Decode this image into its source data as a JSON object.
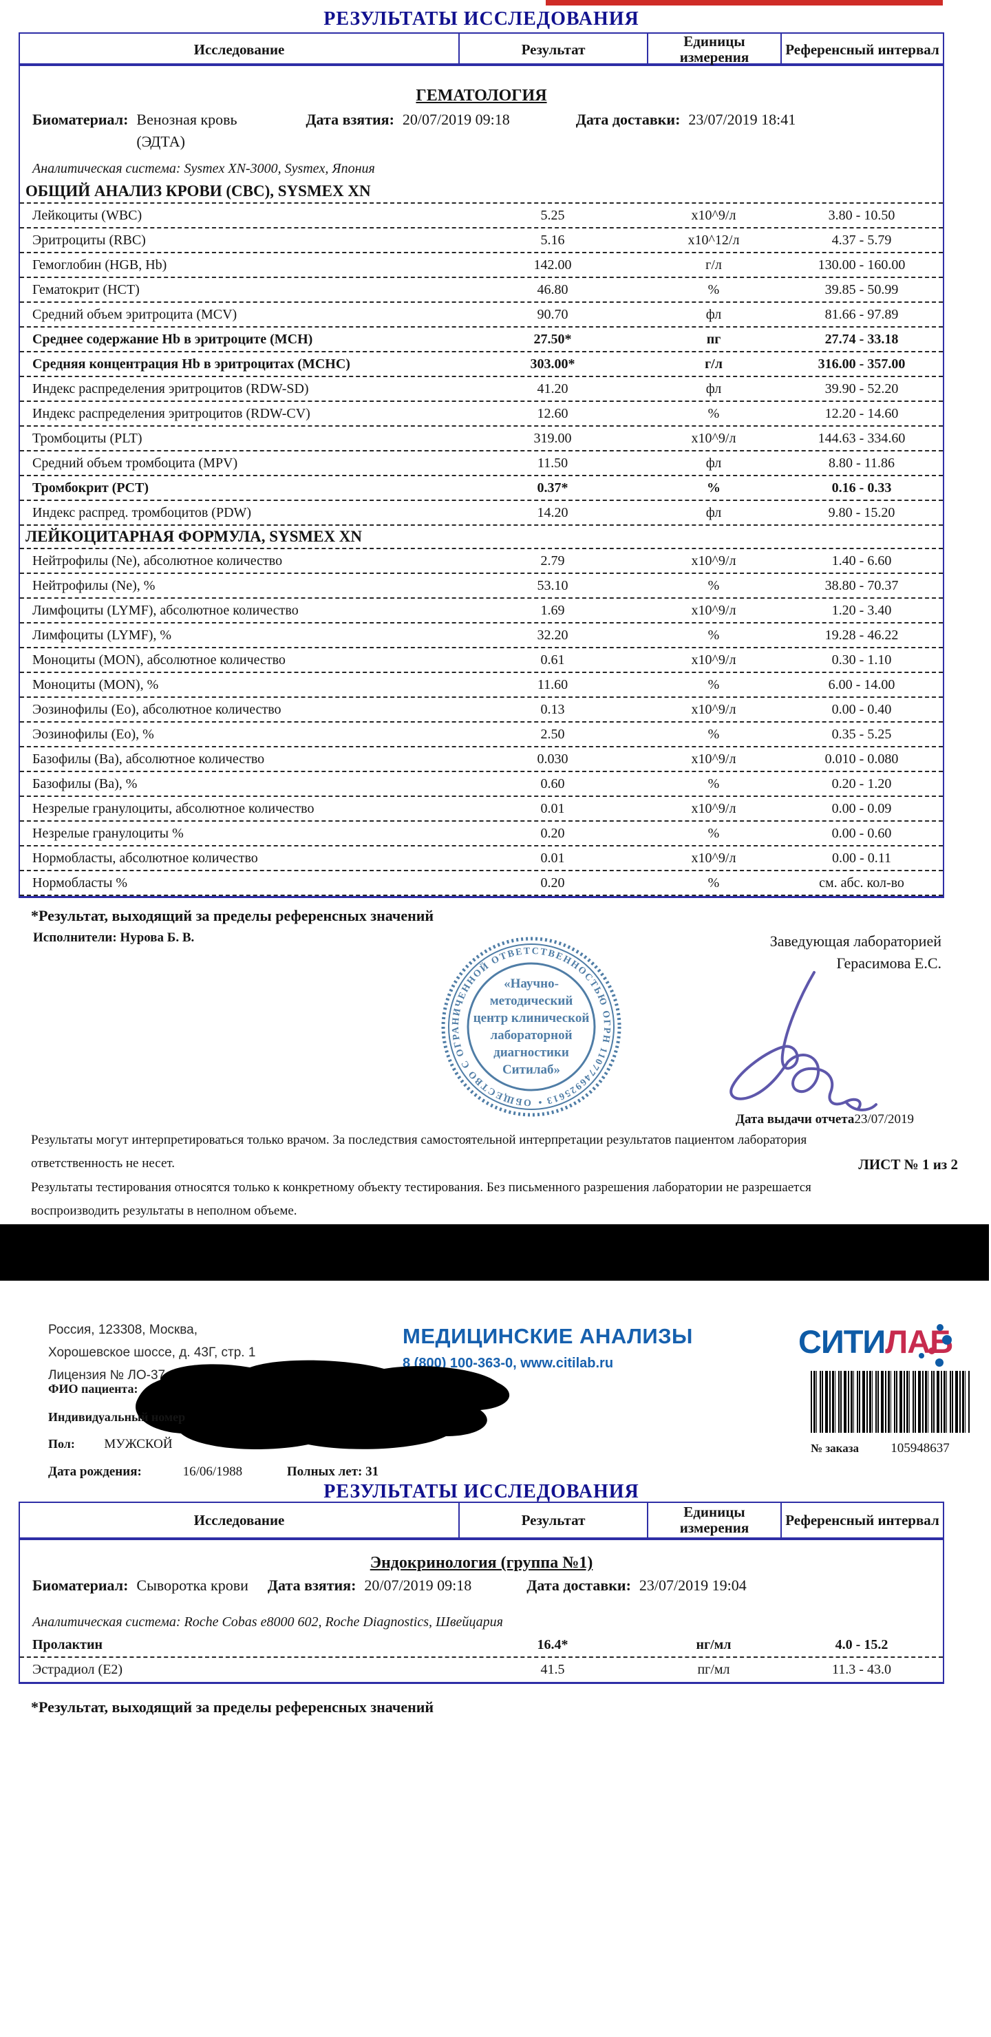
{
  "colors": {
    "table_border": "#2e2ea6",
    "title_navy": "#12128f",
    "red_bar": "#cf2c27",
    "brand_blue": "#1660ae",
    "logo_blue": "#0e5ba6",
    "logo_red": "#c72b4e",
    "stamp_blue": "#41729f",
    "signature_ink": "#5e57ab"
  },
  "report1": {
    "title": "РЕЗУЛЬТАТЫ ИССЛЕДОВАНИЯ",
    "columns": [
      "Исследование",
      "Результат",
      "Единицы измерения",
      "Референсный интервал"
    ],
    "section_title": "ГЕМАТОЛОГИЯ",
    "biomaterial_label": "Биоматериал:",
    "biomaterial_value": "Венозная кровь (ЭДТА)",
    "taken_label": "Дата взятия:",
    "taken_value": "20/07/2019 09:18",
    "delivered_label": "Дата доставки:",
    "delivered_value": "23/07/2019 18:41",
    "analytic_system": "Аналитическая система: Sysmex XN-3000, Sysmex, Япония",
    "groups": [
      {
        "header": "ОБЩИЙ АНАЛИЗ КРОВИ (CBC), SYSMEX XN",
        "rows": [
          {
            "name": "Лейкоциты (WBC)",
            "result": "5.25",
            "units": "x10^9/л",
            "ref": "3.80 - 10.50",
            "flag": false
          },
          {
            "name": "Эритроциты (RBC)",
            "result": "5.16",
            "units": "x10^12/л",
            "ref": "4.37 - 5.79",
            "flag": false
          },
          {
            "name": "Гемоглобин (HGB, Hb)",
            "result": "142.00",
            "units": "г/л",
            "ref": "130.00 - 160.00",
            "flag": false
          },
          {
            "name": "Гематокрит (HCT)",
            "result": "46.80",
            "units": "%",
            "ref": "39.85 - 50.99",
            "flag": false
          },
          {
            "name": "Средний объем эритроцита (MCV)",
            "result": "90.70",
            "units": "фл",
            "ref": "81.66 - 97.89",
            "flag": false
          },
          {
            "name": "Среднее содержание Hb в эритроците (MCH)",
            "result": "27.50*",
            "units": "пг",
            "ref": "27.74 - 33.18",
            "flag": true
          },
          {
            "name": "Средняя концентрация Hb в эритроцитах (MCHC)",
            "result": "303.00*",
            "units": "г/л",
            "ref": "316.00 - 357.00",
            "flag": true
          },
          {
            "name": "Индекс распределения эритроцитов (RDW-SD)",
            "result": "41.20",
            "units": "фл",
            "ref": "39.90 - 52.20",
            "flag": false
          },
          {
            "name": "Индекс распределения эритроцитов (RDW-CV)",
            "result": "12.60",
            "units": "%",
            "ref": "12.20 - 14.60",
            "flag": false
          },
          {
            "name": "Тромбоциты (PLT)",
            "result": "319.00",
            "units": "x10^9/л",
            "ref": "144.63 - 334.60",
            "flag": false
          },
          {
            "name": "Средний объем тромбоцита (MPV)",
            "result": "11.50",
            "units": "фл",
            "ref": "8.80 - 11.86",
            "flag": false
          },
          {
            "name": "Тромбокрит (PCT)",
            "result": "0.37*",
            "units": "%",
            "ref": "0.16 - 0.33",
            "flag": true
          },
          {
            "name": "Индекс распред. тромбоцитов (PDW)",
            "result": "14.20",
            "units": "фл",
            "ref": "9.80 - 15.20",
            "flag": false
          }
        ]
      },
      {
        "header": "ЛЕЙКОЦИТАРНАЯ ФОРМУЛА, SYSMEX XN",
        "rows": [
          {
            "name": "Нейтрофилы (Ne), абсолютное количество",
            "result": "2.79",
            "units": "x10^9/л",
            "ref": "1.40 - 6.60",
            "flag": false
          },
          {
            "name": "Нейтрофилы (Ne), %",
            "result": "53.10",
            "units": "%",
            "ref": "38.80 - 70.37",
            "flag": false
          },
          {
            "name": "Лимфоциты (LYMF), абсолютное количество",
            "result": "1.69",
            "units": "x10^9/л",
            "ref": "1.20 - 3.40",
            "flag": false
          },
          {
            "name": "Лимфоциты (LYMF), %",
            "result": "32.20",
            "units": "%",
            "ref": "19.28 - 46.22",
            "flag": false
          },
          {
            "name": "Моноциты (MON), абсолютное количество",
            "result": "0.61",
            "units": "x10^9/л",
            "ref": "0.30 - 1.10",
            "flag": false
          },
          {
            "name": "Моноциты (MON), %",
            "result": "11.60",
            "units": "%",
            "ref": "6.00 - 14.00",
            "flag": false
          },
          {
            "name": "Эозинофилы (Eo), абсолютное количество",
            "result": "0.13",
            "units": "x10^9/л",
            "ref": "0.00 - 0.40",
            "flag": false
          },
          {
            "name": "Эозинофилы (Eo), %",
            "result": "2.50",
            "units": "%",
            "ref": "0.35 - 5.25",
            "flag": false
          },
          {
            "name": "Базофилы (Ba), абсолютное количество",
            "result": "0.030",
            "units": "x10^9/л",
            "ref": "0.010 - 0.080",
            "flag": false
          },
          {
            "name": "Базофилы (Ba), %",
            "result": "0.60",
            "units": "%",
            "ref": "0.20 - 1.20",
            "flag": false
          },
          {
            "name": "Незрелые гранулоциты, абсолютное количество",
            "result": "0.01",
            "units": "x10^9/л",
            "ref": "0.00 - 0.09",
            "flag": false
          },
          {
            "name": "Незрелые гранулоциты %",
            "result": "0.20",
            "units": "%",
            "ref": "0.00 - 0.60",
            "flag": false
          },
          {
            "name": "Нормобласты, абсолютное количество",
            "result": "0.01",
            "units": "x10^9/л",
            "ref": "0.00 - 0.11",
            "flag": false
          },
          {
            "name": "Нормобласты %",
            "result": "0.20",
            "units": "%",
            "ref": "см. абс. кол-во",
            "flag": false
          }
        ]
      }
    ],
    "footnote": "*Результат, выходящий за пределы референсных значений",
    "performers_label": "Исполнители:",
    "performers_value": "Нурова Б. В.",
    "head_title": "Заведующая лабораторией",
    "head_name": "Герасимова Е.С.",
    "report_date_label": "Дата выдачи отчета",
    "report_date_value": "23/07/2019",
    "stamp": {
      "ring_text": "ОБЩЕСТВО С ОГРАНИЧЕННОЙ ОТВЕТСТВЕННОСТЬЮ ОГРН 1107746925613 • МОСКВА •",
      "center_lines": [
        "«Научно-",
        "методический",
        "центр клинической",
        "лабораторной",
        "диагностики",
        "Ситилаб»"
      ]
    },
    "disclaimer1": "Результаты могут интерпретироваться только врачом. За последствия самостоятельной интерпретации результатов пациентом лаборатория ответственность не несет.",
    "disclaimer2": "Результаты тестирования относятся только к конкретному объекту тестирования. Без письменного разрешения лаборатории не разрешается воспроизводить результаты в неполном объеме.",
    "sheet_label": "ЛИСТ № 1 из 2"
  },
  "page2": {
    "address_lines": [
      "Россия, 123308, Москва,",
      "Хорошевское шоссе, д. 43Г, стр. 1",
      "Лицензия № ЛО-37-01-001315 от 04.12.2018 г."
    ],
    "brand_title": "МЕДИЦИНСКИЕ АНАЛИЗЫ",
    "brand_contacts": "8 (800) 100-363-0, www.citilab.ru",
    "logo_part1": "СИТИ",
    "logo_part2": "ЛАБ",
    "patient_name_label": "ФИО пациента:",
    "patient_id_label": "Индивидуальный номер",
    "sex_label": "Пол:",
    "sex_value": "МУЖСКОЙ",
    "order_label": "№ заказа",
    "order_value": "105948637",
    "birth_label": "Дата рождения:",
    "birth_value": "16/06/1988",
    "age_label": "Полных лет: 31"
  },
  "report2": {
    "title": "РЕЗУЛЬТАТЫ ИССЛЕДОВАНИЯ",
    "columns": [
      "Исследование",
      "Результат",
      "Единицы измерения",
      "Референсный интервал"
    ],
    "section_title": "Эндокринология (группа №1)",
    "biomaterial_label": "Биоматериал:",
    "biomaterial_value": "Сыворотка крови",
    "taken_label": "Дата взятия:",
    "taken_value": "20/07/2019 09:18",
    "delivered_label": "Дата доставки:",
    "delivered_value": "23/07/2019 19:04",
    "analytic_system": "Аналитическая система: Roche Cobas e8000 602, Roche Diagnostics, Швейцария",
    "rows": [
      {
        "name": "Пролактин",
        "result": "16.4*",
        "units": "нг/мл",
        "ref": "4.0 - 15.2",
        "flag": true
      },
      {
        "name": "Эстрадиол (E2)",
        "result": "41.5",
        "units": "пг/мл",
        "ref": "11.3 - 43.0",
        "flag": false
      }
    ],
    "footnote": "*Результат, выходящий за пределы референсных значений"
  }
}
